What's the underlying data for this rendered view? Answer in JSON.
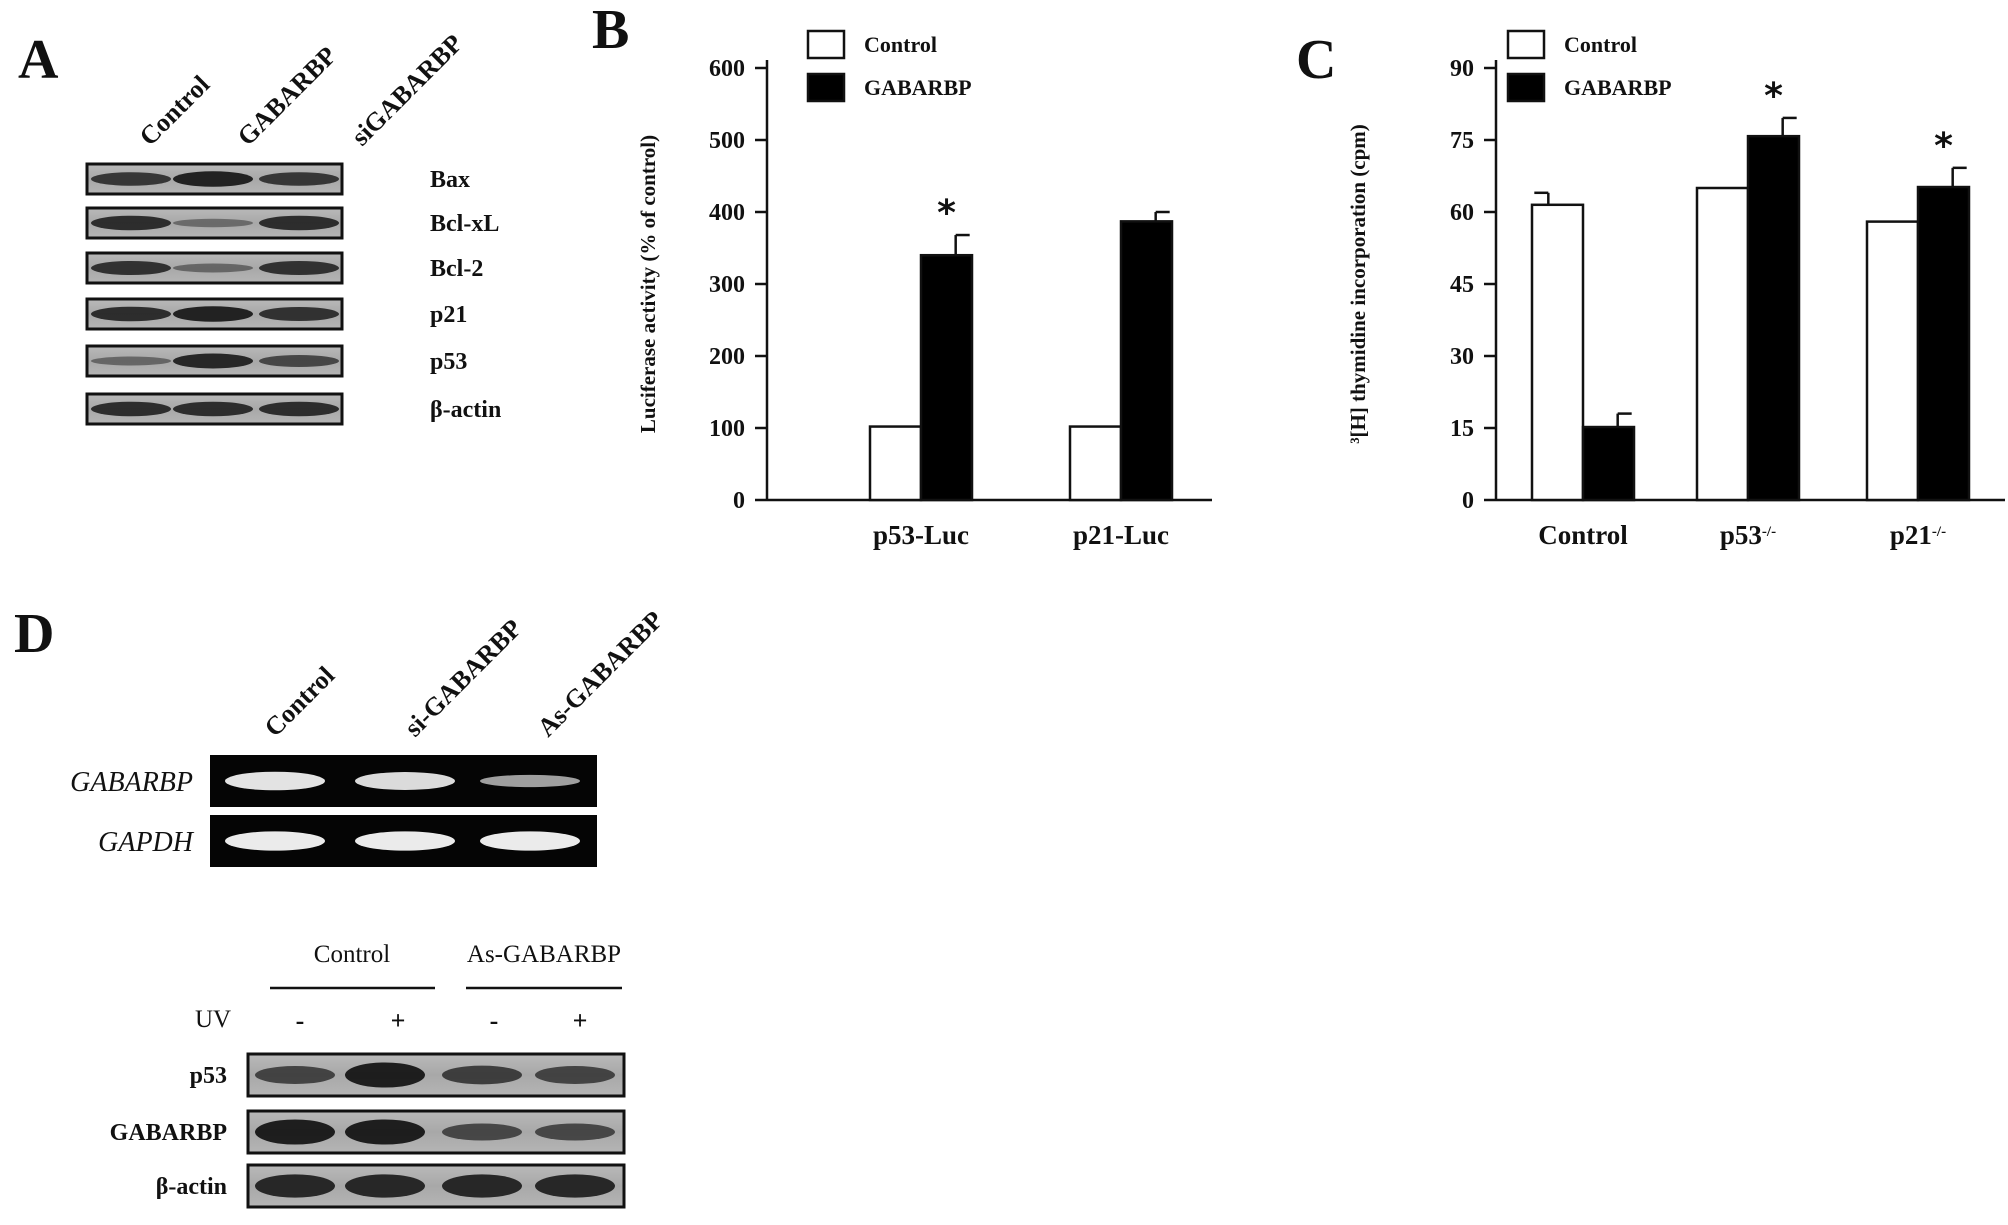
{
  "panels": {
    "a": {
      "letter": "A",
      "lanes": [
        "Control",
        "GABARBP",
        "siGABARBP"
      ],
      "blots": [
        {
          "label": "Bax",
          "intensity": [
            0.75,
            0.95,
            0.75
          ]
        },
        {
          "label": "Bcl-xL",
          "intensity": [
            0.85,
            0.25,
            0.85
          ]
        },
        {
          "label": "Bcl-2",
          "intensity": [
            0.8,
            0.3,
            0.8
          ]
        },
        {
          "label": "p21",
          "intensity": [
            0.85,
            0.95,
            0.8
          ]
        },
        {
          "label": "p53",
          "intensity": [
            0.3,
            0.9,
            0.6
          ]
        },
        {
          "label": "β-actin",
          "intensity": [
            0.85,
            0.85,
            0.85
          ]
        }
      ]
    },
    "b": {
      "letter": "B"
    },
    "c": {
      "letter": "C"
    },
    "d": {
      "letter": "D",
      "gel_lanes": [
        "Control",
        "si-GABARBP",
        "As-GABARBP"
      ],
      "gel_rows": [
        {
          "label": "GABARBP",
          "intensity": [
            0.9,
            0.85,
            0.45
          ]
        },
        {
          "label": "GAPDH",
          "intensity": [
            0.95,
            0.95,
            0.95
          ]
        }
      ],
      "group_labels": [
        "Control",
        "As-GABARBP"
      ],
      "uv_label": "UV",
      "uv_signs": [
        "-",
        "+",
        "-",
        "+"
      ],
      "blots": [
        {
          "label": "p53",
          "intensity": [
            0.55,
            0.95,
            0.6,
            0.55
          ]
        },
        {
          "label": "GABARBP",
          "intensity": [
            0.95,
            0.95,
            0.5,
            0.5
          ]
        },
        {
          "label": "β-actin",
          "intensity": [
            0.85,
            0.85,
            0.85,
            0.85
          ]
        }
      ]
    }
  },
  "chart_data": [
    {
      "type": "bar",
      "panel": "B",
      "ylabel": "Luciferase activity (% of control)",
      "categories": [
        "p53-Luc",
        "p21-Luc"
      ],
      "ylim": [
        0,
        600
      ],
      "yticks": [
        "0",
        "100",
        "200",
        "300",
        "400",
        "500",
        "600"
      ],
      "series": [
        {
          "name": "Control",
          "color": "#ffffff",
          "values": [
            102,
            102
          ],
          "errors": [
            0,
            0
          ]
        },
        {
          "name": "GABARBP",
          "color": "#000000",
          "values": [
            340,
            387
          ],
          "errors": [
            28,
            13
          ]
        }
      ],
      "significance": [
        "*",
        ""
      ],
      "legend_position": "top-left"
    },
    {
      "type": "bar",
      "panel": "C",
      "ylabel": "³[H] thymidine incorporation (cpm)",
      "categories": [
        "Control",
        "p53",
        "p21"
      ],
      "category_superscripts": [
        "",
        "-/-",
        "-/-"
      ],
      "ylim": [
        0,
        90
      ],
      "yticks": [
        "0",
        "15",
        "30",
        "45",
        "60",
        "75",
        "90"
      ],
      "series": [
        {
          "name": "Control",
          "color": "#ffffff",
          "values": [
            61.5,
            65,
            58
          ],
          "errors": [
            2.5,
            0,
            0
          ]
        },
        {
          "name": "GABARBP",
          "color": "#000000",
          "values": [
            15.2,
            75.8,
            65.2
          ],
          "errors": [
            2.8,
            3.8,
            4.0
          ]
        }
      ],
      "significance": [
        "",
        "*",
        "*"
      ],
      "legend_position": "top-left"
    }
  ]
}
